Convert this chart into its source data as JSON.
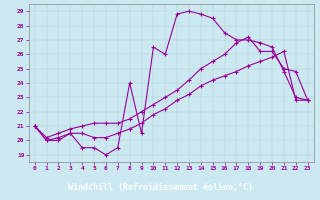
{
  "xlabel": "Windchill (Refroidissement éolien,°C)",
  "bg_color": "#cce8f0",
  "line_color": "#990099",
  "xlabel_bg": "#3333aa",
  "xlabel_fg": "#ffffff",
  "marker": "+",
  "markersize": 3,
  "linewidth": 0.8,
  "xlim": [
    -0.5,
    23.5
  ],
  "ylim": [
    18.5,
    29.5
  ],
  "yticks": [
    19,
    20,
    21,
    22,
    23,
    24,
    25,
    26,
    27,
    28,
    29
  ],
  "xticks": [
    0,
    1,
    2,
    3,
    4,
    5,
    6,
    7,
    8,
    9,
    10,
    11,
    12,
    13,
    14,
    15,
    16,
    17,
    18,
    19,
    20,
    21,
    22,
    23
  ],
  "series": [
    [
      21.0,
      20.0,
      20.0,
      20.5,
      19.5,
      19.5,
      19.0,
      19.5,
      24.0,
      20.5,
      26.5,
      26.0,
      28.8,
      29.0,
      28.8,
      28.5,
      27.5,
      27.0,
      27.0,
      26.8,
      26.5,
      24.8,
      23.0,
      22.8
    ],
    [
      21.0,
      20.0,
      20.2,
      20.5,
      20.5,
      20.2,
      20.2,
      20.5,
      20.8,
      21.2,
      21.8,
      22.2,
      22.8,
      23.2,
      23.8,
      24.2,
      24.5,
      24.8,
      25.2,
      25.5,
      25.8,
      26.2,
      22.8,
      22.8
    ],
    [
      21.0,
      20.2,
      20.5,
      20.8,
      21.0,
      21.2,
      21.2,
      21.2,
      21.5,
      22.0,
      22.5,
      23.0,
      23.5,
      24.2,
      25.0,
      25.5,
      26.0,
      26.8,
      27.2,
      26.2,
      26.2,
      25.0,
      24.8,
      22.8
    ]
  ]
}
